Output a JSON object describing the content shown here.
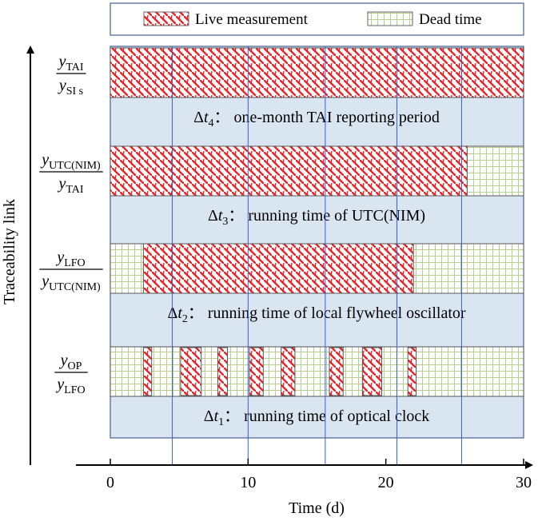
{
  "chart_data": {
    "type": "timeline",
    "xlabel": "Time (d)",
    "ylabel": "Traceability link",
    "xlim": [
      0,
      30
    ],
    "xticks": [
      0,
      10,
      20,
      30
    ],
    "legend": {
      "placement": "top",
      "items": [
        {
          "label": "Live measurement",
          "pattern": "diagonal-hatch",
          "color": "#e8252b"
        },
        {
          "label": "Dead time",
          "pattern": "grid",
          "color": "#b7cf8e"
        }
      ]
    },
    "vlines": [
      4.5,
      10,
      15.6,
      20.8,
      25.5
    ],
    "panel_color": "#dae5f2",
    "rows": [
      {
        "num_base": "y",
        "num_sub": "TAI",
        "den_base": "y",
        "den_sub": "SI s",
        "caption_sub": "4",
        "caption_text": "：  one-month TAI reporting period",
        "live": [
          [
            0,
            30
          ]
        ]
      },
      {
        "num_base": "y",
        "num_sub": "UTC(NIM)",
        "den_base": "y",
        "den_sub": "TAI",
        "caption_sub": "3",
        "caption_text": "：  running time of UTC(NIM)",
        "live": [
          [
            0,
            25.9
          ]
        ]
      },
      {
        "num_base": "y",
        "num_sub": "LFO",
        "den_base": "y",
        "den_sub": "UTC(NIM)",
        "caption_sub": "2",
        "caption_text": "：  running time of local flywheel oscillator",
        "live": [
          [
            2.4,
            22
          ]
        ]
      },
      {
        "num_base": "y",
        "num_sub": "OP",
        "den_base": "y",
        "den_sub": "LFO",
        "caption_sub": "1",
        "caption_text": "：  running time of optical clock",
        "live": [
          [
            2.4,
            3.0
          ],
          [
            5.1,
            6.6
          ],
          [
            7.8,
            8.5
          ],
          [
            10.1,
            11.1
          ],
          [
            12.4,
            13.4
          ],
          [
            15.9,
            16.9
          ],
          [
            18.3,
            19.7
          ],
          [
            21.6,
            22.2
          ]
        ]
      }
    ]
  }
}
